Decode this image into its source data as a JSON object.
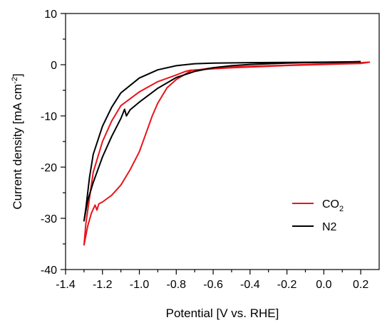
{
  "chart_data": {
    "type": "line",
    "xlabel": "Potential [V vs. RHE]",
    "ylabel_main": "Current density [mA cm",
    "ylabel_sup": "-2",
    "ylabel_tail": "]",
    "xlim": [
      -1.4,
      0.3
    ],
    "ylim": [
      -40,
      10
    ],
    "xticks": [
      -1.4,
      -1.2,
      -1.0,
      -0.8,
      -0.6,
      -0.4,
      -0.2,
      0.0,
      0.2
    ],
    "xtick_labels": [
      "-1.4",
      "-1.2",
      "-1.0",
      "-0.8",
      "-0.6",
      "-0.4",
      "-0.2",
      "0.0",
      "0.2"
    ],
    "yticks": [
      -40,
      -30,
      -20,
      -10,
      0,
      10
    ],
    "ytick_labels": [
      "-40",
      "-30",
      "-20",
      "-10",
      "0",
      "10"
    ],
    "legend_position": "bottom-right",
    "series": [
      {
        "name": "CO",
        "name_sub": "2",
        "color": "#e8141c",
        "points": [
          [
            0.25,
            0.5
          ],
          [
            0.2,
            0.25
          ],
          [
            0.1,
            0.15
          ],
          [
            0.0,
            0.05
          ],
          [
            -0.1,
            -0.05
          ],
          [
            -0.2,
            -0.15
          ],
          [
            -0.3,
            -0.3
          ],
          [
            -0.4,
            -0.45
          ],
          [
            -0.5,
            -0.6
          ],
          [
            -0.6,
            -0.8
          ],
          [
            -0.7,
            -1.0
          ],
          [
            -0.72,
            -1.2
          ],
          [
            -0.75,
            -1.8
          ],
          [
            -0.8,
            -2.9
          ],
          [
            -0.85,
            -4.5
          ],
          [
            -0.9,
            -7.5
          ],
          [
            -0.93,
            -10
          ],
          [
            -0.96,
            -13
          ],
          [
            -1.0,
            -17
          ],
          [
            -1.05,
            -20.5
          ],
          [
            -1.1,
            -23.5
          ],
          [
            -1.15,
            -25.5
          ],
          [
            -1.2,
            -26.8
          ],
          [
            -1.22,
            -27.2
          ],
          [
            -1.23,
            -28.4
          ],
          [
            -1.24,
            -27.4
          ],
          [
            -1.26,
            -29
          ],
          [
            -1.28,
            -31.5
          ],
          [
            -1.3,
            -35.2
          ],
          [
            -1.29,
            -31
          ],
          [
            -1.27,
            -26
          ],
          [
            -1.25,
            -21
          ],
          [
            -1.2,
            -15
          ],
          [
            -1.15,
            -11
          ],
          [
            -1.1,
            -8
          ],
          [
            -1.0,
            -5.3
          ],
          [
            -0.9,
            -3.3
          ],
          [
            -0.8,
            -2.0
          ],
          [
            -0.75,
            -1.3
          ],
          [
            -0.72,
            -1.05
          ],
          [
            -0.7,
            -1.1
          ],
          [
            -0.6,
            -0.6
          ],
          [
            -0.4,
            -0.3
          ],
          [
            -0.2,
            -0.1
          ],
          [
            0.0,
            0.15
          ],
          [
            0.2,
            0.4
          ],
          [
            0.25,
            0.5
          ]
        ]
      },
      {
        "name": "N2",
        "name_sub": "",
        "color": "#000000",
        "points": [
          [
            0.2,
            0.6
          ],
          [
            0.1,
            0.5
          ],
          [
            0.0,
            0.45
          ],
          [
            -0.1,
            0.4
          ],
          [
            -0.2,
            0.3
          ],
          [
            -0.3,
            0.2
          ],
          [
            -0.4,
            0.05
          ],
          [
            -0.5,
            -0.2
          ],
          [
            -0.6,
            -0.6
          ],
          [
            -0.7,
            -1.3
          ],
          [
            -0.8,
            -2.5
          ],
          [
            -0.9,
            -4.6
          ],
          [
            -1.0,
            -7.3
          ],
          [
            -1.05,
            -8.8
          ],
          [
            -1.07,
            -10
          ],
          [
            -1.08,
            -8.7
          ],
          [
            -1.1,
            -10.5
          ],
          [
            -1.15,
            -14
          ],
          [
            -1.2,
            -18
          ],
          [
            -1.25,
            -23
          ],
          [
            -1.28,
            -26.5
          ],
          [
            -1.3,
            -30.5
          ],
          [
            -1.29,
            -28
          ],
          [
            -1.27,
            -22
          ],
          [
            -1.25,
            -17.5
          ],
          [
            -1.2,
            -12
          ],
          [
            -1.15,
            -8.3
          ],
          [
            -1.1,
            -5.5
          ],
          [
            -1.0,
            -2.6
          ],
          [
            -0.9,
            -1.0
          ],
          [
            -0.8,
            -0.2
          ],
          [
            -0.7,
            0.2
          ],
          [
            -0.6,
            0.3
          ],
          [
            -0.4,
            0.4
          ],
          [
            -0.2,
            0.45
          ],
          [
            0.0,
            0.5
          ],
          [
            0.2,
            0.6
          ]
        ]
      }
    ]
  }
}
